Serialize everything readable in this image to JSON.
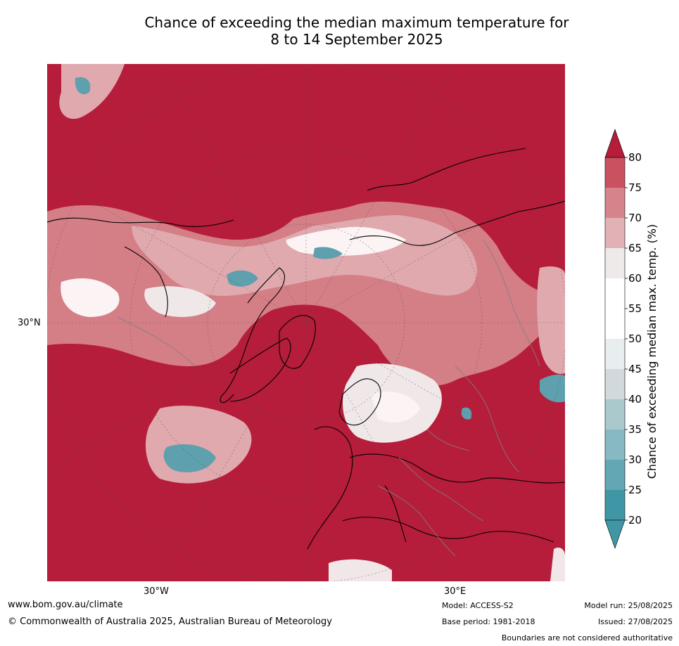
{
  "title": {
    "line1": "Chance of exceeding the median maximum temperature for",
    "line2": "8 to 14 September 2025"
  },
  "map": {
    "projection": "north-polar-stereographic",
    "lat_label": "30°N",
    "lon_labels": [
      "30°W",
      "30°E"
    ]
  },
  "colorbar": {
    "label": "Chance of exceeding median max. temp. (%)",
    "ticks": [
      "80",
      "75",
      "70",
      "65",
      "60",
      "55",
      "50",
      "45",
      "40",
      "35",
      "30",
      "25",
      "20"
    ],
    "colors": [
      "#b51d3a",
      "#c8525f",
      "#d6848b",
      "#e2b1b5",
      "#eeeaea",
      "#ffffff",
      "#ffffff",
      "#e8eef0",
      "#d1d9dc",
      "#aac9cd",
      "#86b9c1",
      "#62a7b3",
      "#3f97a6"
    ],
    "upper_cap_color": "#b51d3a",
    "lower_cap_color": "#3f97a6"
  },
  "footer": {
    "website": "www.bom.gov.au/climate",
    "copyright": "© Commonwealth of Australia 2025, Australian Bureau of Meteorology",
    "model": "Model: ACCESS-S2",
    "base_period": "Base period: 1981-2018",
    "model_run": "Model run: 25/08/2025",
    "issued": "Issued: 27/08/2025",
    "disclaimer": "Boundaries are not considered authoritative"
  },
  "colors": {
    "high": "#b51d3a",
    "mid_high": "#d6848b",
    "neutral": "#f4f2f2",
    "low": "#5aa8b5",
    "land_outline": "#000000",
    "border": "#808080"
  }
}
